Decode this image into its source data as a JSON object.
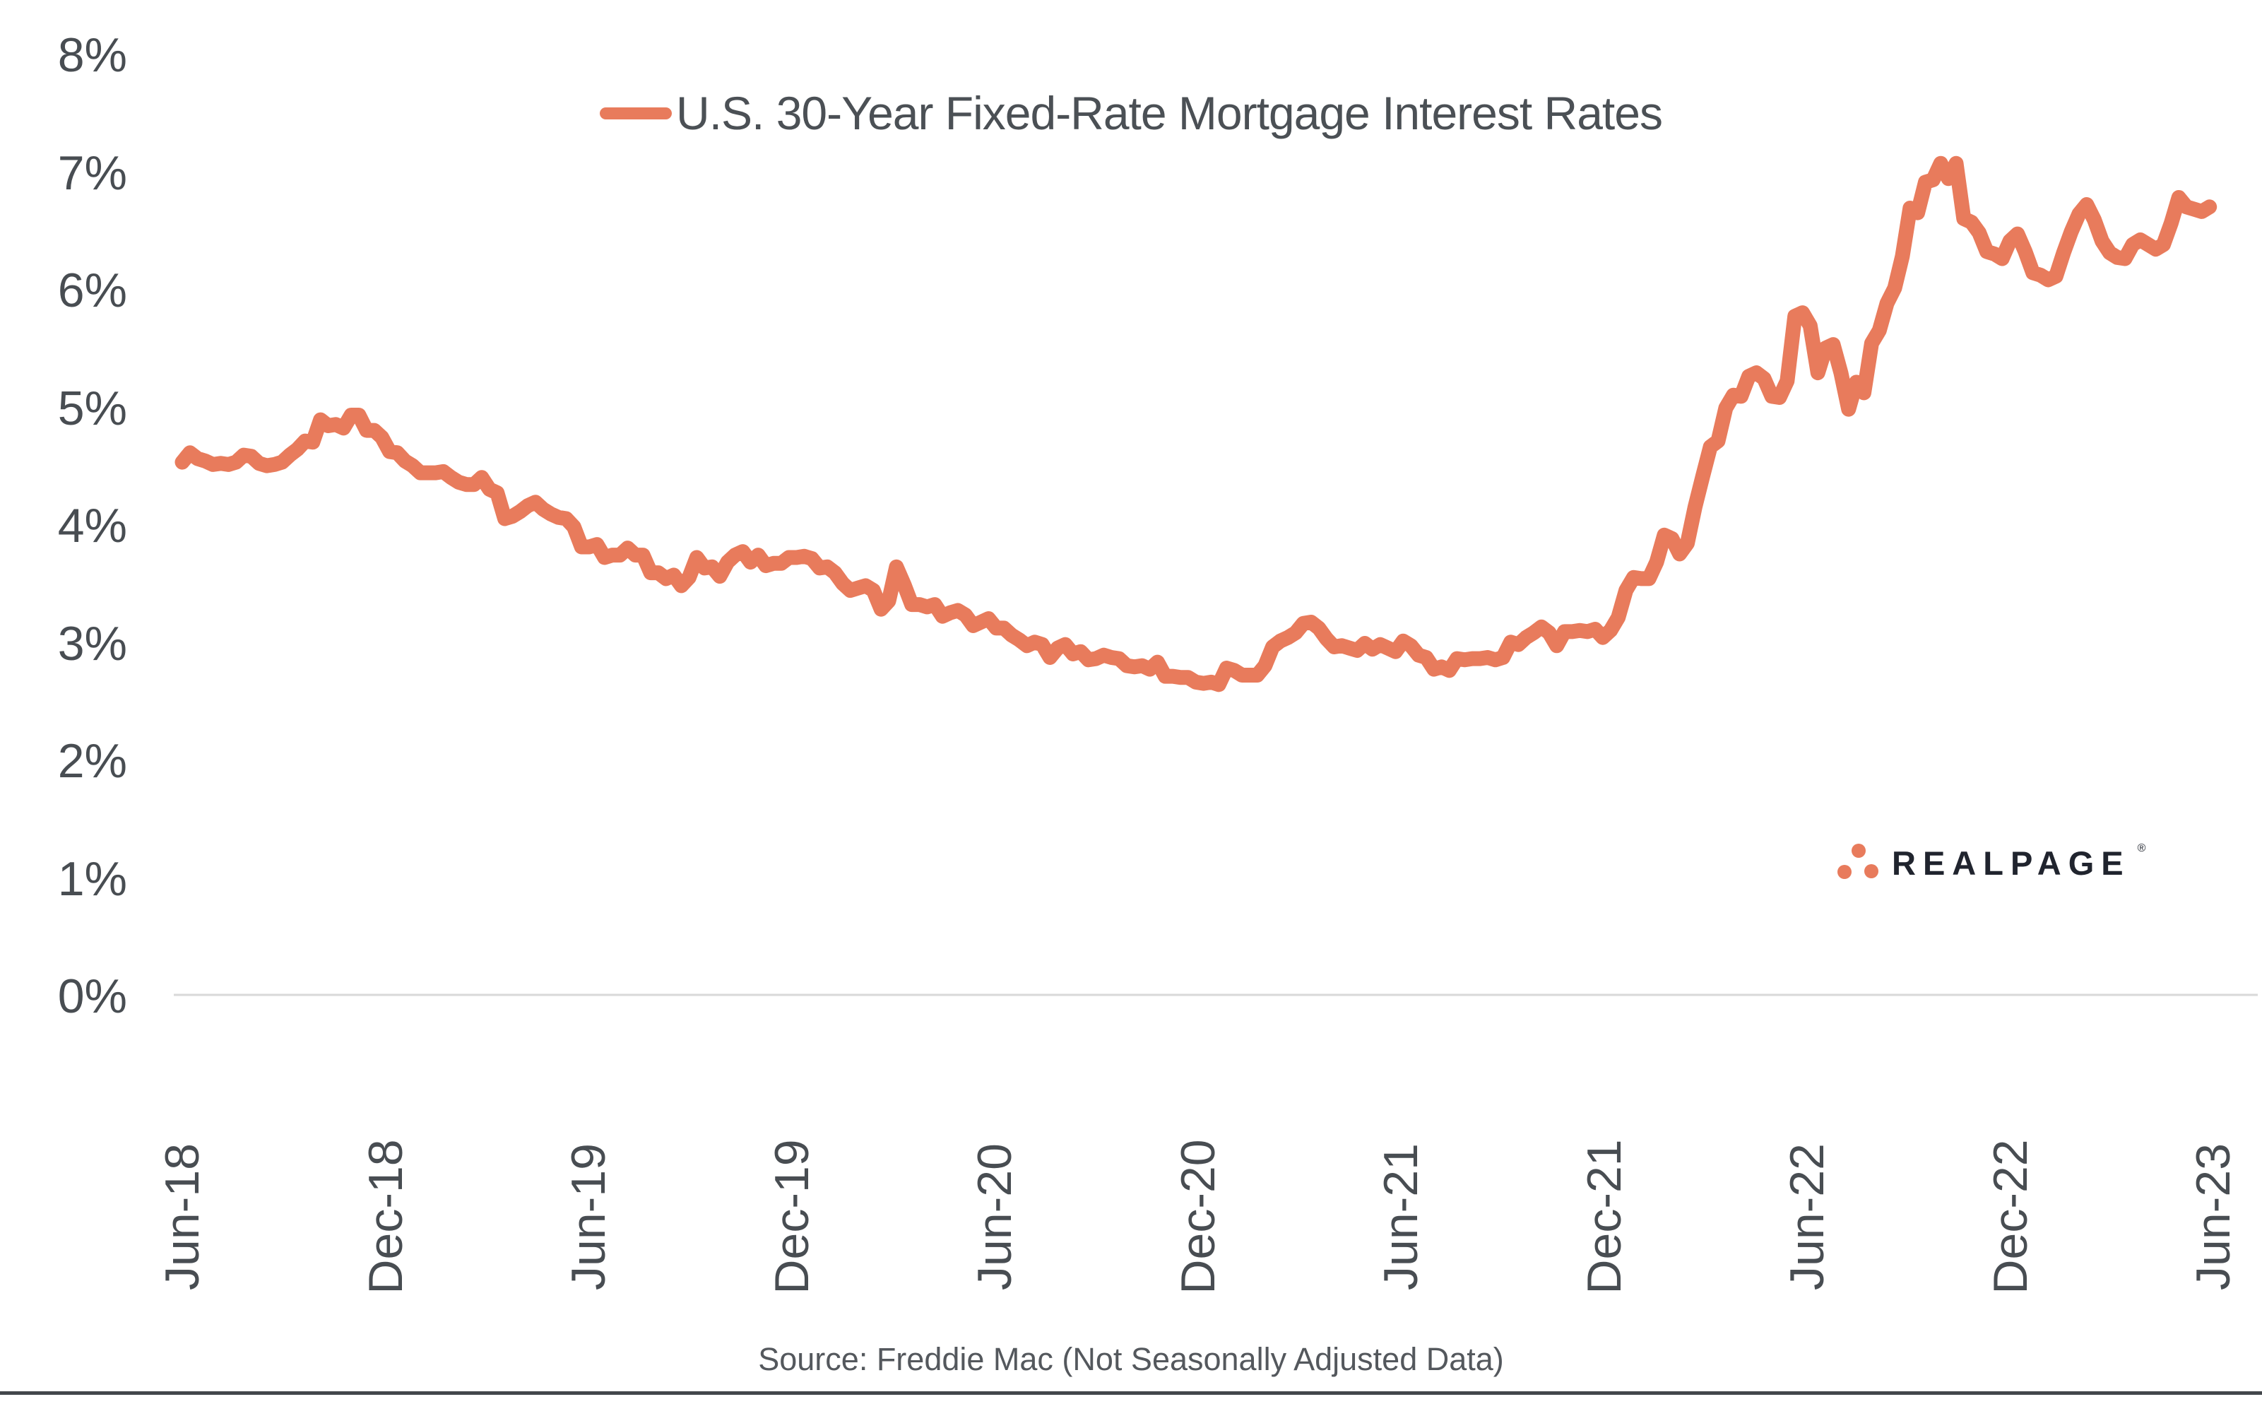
{
  "legend": {
    "label": "U.S. 30-Year Fixed-Rate Mortgage Interest Rates"
  },
  "source": {
    "text": "Source: Freddie Mac (Not Seasonally Adjusted Data)"
  },
  "logo": {
    "text": "REALPAGE",
    "reg": "®",
    "dots_icon": "realpage-triangle-dots"
  },
  "colors": {
    "background": "#FFFFFF",
    "line": "#E87B5C",
    "grid": "#D9D9D9",
    "axis_text": "#484D52",
    "legend_text": "#4B5055",
    "source_text": "#54585D",
    "logo_text": "#20242E",
    "logo_dots": "#E87B5C",
    "border": "#43474C"
  },
  "chart_data": {
    "type": "line",
    "title": "U.S. 30-Year Fixed-Rate Mortgage Interest Rates",
    "ylabel": "",
    "xlabel": "",
    "unit": "percent",
    "frequency": "weekly",
    "start_date": "2018-06-07",
    "end_date": "2023-06-29",
    "ylim": [
      0,
      8
    ],
    "grid": "baseline-only",
    "legend_position": "top-center",
    "y_tick_labels": [
      "0%",
      "1%",
      "2%",
      "3%",
      "4%",
      "5%",
      "6%",
      "7%",
      "8%"
    ],
    "x_tick_labels": [
      "Jun-18",
      "Dec-18",
      "Jun-19",
      "Dec-19",
      "Jun-20",
      "Dec-20",
      "Jun-21",
      "Dec-21",
      "Jun-22",
      "Dec-22",
      "Jun-23"
    ],
    "series": [
      {
        "name": "U.S. 30-Year Fixed-Rate Mortgage Interest Rates",
        "values": [
          4.54,
          4.62,
          4.57,
          4.55,
          4.52,
          4.53,
          4.52,
          4.54,
          4.6,
          4.59,
          4.53,
          4.51,
          4.52,
          4.54,
          4.6,
          4.65,
          4.72,
          4.71,
          4.9,
          4.85,
          4.86,
          4.83,
          4.94,
          4.94,
          4.81,
          4.81,
          4.75,
          4.63,
          4.62,
          4.55,
          4.51,
          4.45,
          4.45,
          4.45,
          4.46,
          4.41,
          4.37,
          4.35,
          4.35,
          4.41,
          4.31,
          4.28,
          4.06,
          4.08,
          4.12,
          4.17,
          4.2,
          4.14,
          4.1,
          4.07,
          4.06,
          3.99,
          3.82,
          3.82,
          3.84,
          3.73,
          3.75,
          3.75,
          3.81,
          3.75,
          3.75,
          3.6,
          3.6,
          3.55,
          3.58,
          3.49,
          3.56,
          3.73,
          3.64,
          3.65,
          3.57,
          3.69,
          3.75,
          3.78,
          3.69,
          3.75,
          3.66,
          3.68,
          3.68,
          3.73,
          3.73,
          3.74,
          3.72,
          3.64,
          3.65,
          3.6,
          3.51,
          3.45,
          3.47,
          3.49,
          3.45,
          3.29,
          3.36,
          3.65,
          3.5,
          3.33,
          3.33,
          3.31,
          3.33,
          3.23,
          3.26,
          3.28,
          3.24,
          3.15,
          3.18,
          3.21,
          3.13,
          3.13,
          3.07,
          3.03,
          2.98,
          3.01,
          2.99,
          2.88,
          2.96,
          2.99,
          2.91,
          2.93,
          2.86,
          2.87,
          2.9,
          2.88,
          2.87,
          2.81,
          2.8,
          2.81,
          2.78,
          2.84,
          2.72,
          2.72,
          2.71,
          2.71,
          2.67,
          2.66,
          2.67,
          2.65,
          2.79,
          2.77,
          2.73,
          2.73,
          2.73,
          2.81,
          2.97,
          3.02,
          3.05,
          3.09,
          3.17,
          3.18,
          3.13,
          3.04,
          2.97,
          2.98,
          2.96,
          2.94,
          3.0,
          2.95,
          2.99,
          2.96,
          2.93,
          3.02,
          2.98,
          2.9,
          2.88,
          2.78,
          2.8,
          2.77,
          2.87,
          2.86,
          2.87,
          2.87,
          2.88,
          2.86,
          2.88,
          3.01,
          2.99,
          3.05,
          3.09,
          3.14,
          3.09,
          2.98,
          3.1,
          3.1,
          3.11,
          3.1,
          3.12,
          3.05,
          3.11,
          3.22,
          3.45,
          3.56,
          3.55,
          3.55,
          3.69,
          3.92,
          3.89,
          3.76,
          3.85,
          4.16,
          4.42,
          4.67,
          4.72,
          5.0,
          5.11,
          5.1,
          5.27,
          5.3,
          5.25,
          5.1,
          5.09,
          5.23,
          5.78,
          5.81,
          5.7,
          5.3,
          5.51,
          5.54,
          5.3,
          4.99,
          5.22,
          5.13,
          5.55,
          5.66,
          5.89,
          6.02,
          6.29,
          6.7,
          6.66,
          6.92,
          6.94,
          7.08,
          6.95,
          7.08,
          6.61,
          6.58,
          6.49,
          6.33,
          6.31,
          6.27,
          6.42,
          6.48,
          6.33,
          6.15,
          6.13,
          6.09,
          6.12,
          6.32,
          6.5,
          6.65,
          6.73,
          6.6,
          6.42,
          6.32,
          6.28,
          6.27,
          6.39,
          6.43,
          6.39,
          6.35,
          6.39,
          6.57,
          6.79,
          6.71,
          6.69,
          6.67,
          6.71
        ]
      }
    ]
  }
}
